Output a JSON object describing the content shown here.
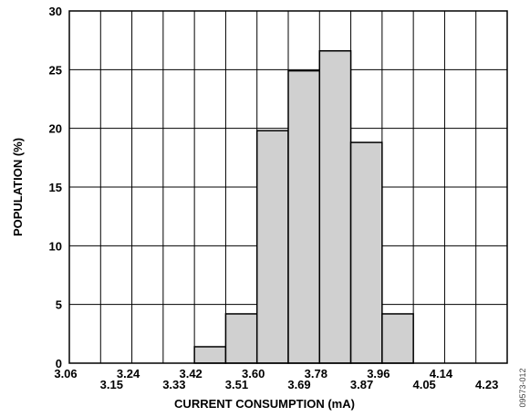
{
  "chart_data": {
    "type": "bar",
    "title": "",
    "xlabel": "CURRENT CONSUMPTION (mA)",
    "ylabel": "POPULATION (%)",
    "ylim": [
      0,
      30
    ],
    "yticks": [
      "0",
      "5",
      "10",
      "15",
      "20",
      "25",
      "30"
    ],
    "xticks": [
      "3.06",
      "3.15",
      "3.24",
      "3.33",
      "3.42",
      "3.51",
      "3.60",
      "3.69",
      "3.78",
      "3.87",
      "3.96",
      "4.05",
      "4.14",
      "4.23"
    ],
    "categories": [
      "3.06",
      "3.15",
      "3.24",
      "3.33",
      "3.42",
      "3.51",
      "3.60",
      "3.69",
      "3.78",
      "3.87",
      "3.96",
      "4.05",
      "4.14",
      "4.23"
    ],
    "values": [
      0,
      0,
      0,
      0,
      1.4,
      4.2,
      19.8,
      24.9,
      26.6,
      18.8,
      4.2,
      0,
      0,
      0
    ],
    "grid": true,
    "legend": "none",
    "bar_color": "#d0d0d0",
    "figure_id": "09573-012"
  }
}
